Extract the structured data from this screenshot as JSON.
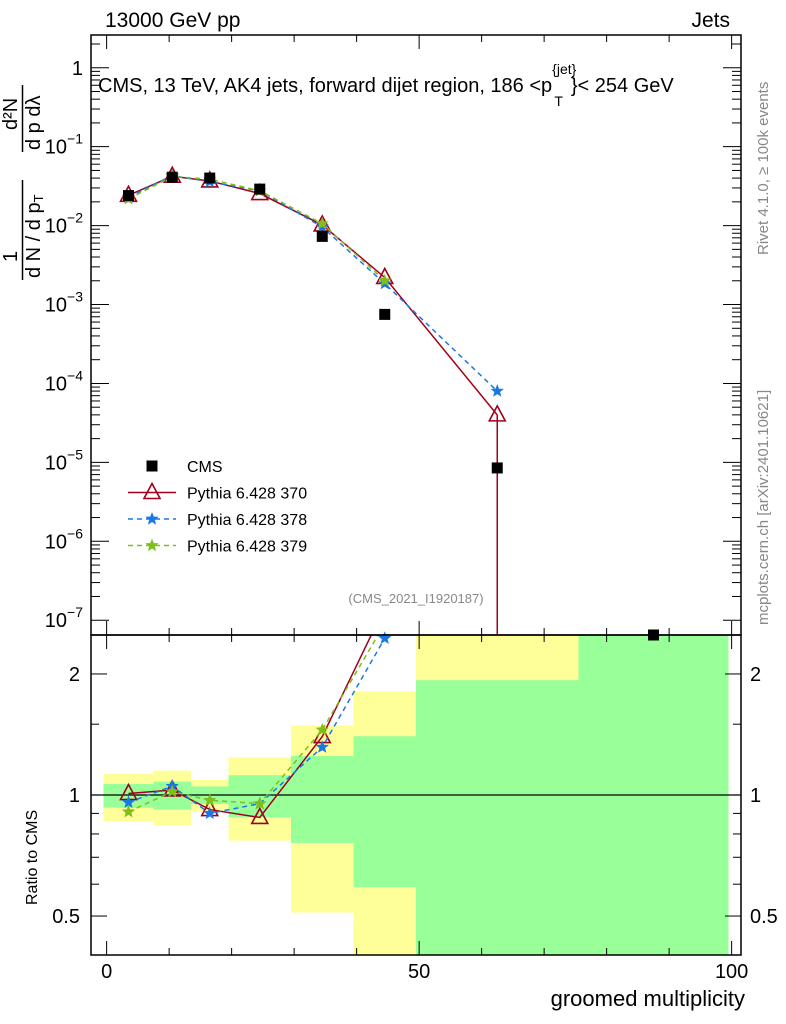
{
  "chart_data": {
    "type": "line",
    "header_left": "13000 GeV pp",
    "header_right": "Jets",
    "title": "CMS, 13 TeV, AK4 jets, forward dijet region, 186 <p",
    "title_sup": "{jet}",
    "title_sub": "T",
    "title_end": "}< 254 GeV",
    "ylabel": "1/N dN/dp_T dλ",
    "ylabel_parts": {
      "pre": "1",
      "mid": "d N / d p",
      "sub": "T",
      "num": "d²N",
      "den": "d p  dλ"
    },
    "ratio_ylabel": "Ratio to CMS",
    "xlabel": "groomed multiplicity",
    "side_label_top": "Rivet 4.1.0, ≥ 100k events",
    "side_label_bottom": "mcplots.cern.ch [arXiv:2401.10621]",
    "analysis_tag": "(CMS_2021_I1920187)",
    "xlim": [
      -2.5,
      101.5
    ],
    "ylim_log": [
      6.5e-08,
      2.6
    ],
    "ratio_ylim_log": [
      0.4,
      2.5
    ],
    "x_ticks": [
      "0",
      "50",
      "100"
    ],
    "x_tick_values": [
      0,
      50,
      100
    ],
    "y_ticks": [
      {
        "base": "1",
        "exp": ""
      },
      {
        "base": "10",
        "exp": "−1"
      },
      {
        "base": "10",
        "exp": "−2"
      },
      {
        "base": "10",
        "exp": "−3"
      },
      {
        "base": "10",
        "exp": "−4"
      },
      {
        "base": "10",
        "exp": "−5"
      },
      {
        "base": "10",
        "exp": "−6"
      },
      {
        "base": "10",
        "exp": "−7"
      }
    ],
    "y_tick_values": [
      1,
      0.1,
      0.01,
      0.001,
      0.0001,
      1e-05,
      1e-06,
      1e-07
    ],
    "ratio_ticks": [
      "0.5",
      "1",
      "2"
    ],
    "ratio_tick_values": [
      0.5,
      1,
      2
    ],
    "x": [
      3.5,
      10.5,
      16.5,
      24.5,
      34.5,
      44.5,
      62.5,
      87.5
    ],
    "bins": [
      [
        -0.5,
        7.5
      ],
      [
        7.5,
        13.5
      ],
      [
        13.5,
        19.5
      ],
      [
        19.5,
        29.5
      ],
      [
        29.5,
        39.5
      ],
      [
        39.5,
        49.5
      ],
      [
        49.5,
        75.5
      ],
      [
        75.5,
        99.5
      ]
    ],
    "band_stat": [
      [
        0.93,
        1.065
      ],
      [
        0.92,
        1.08
      ],
      [
        0.95,
        1.05
      ],
      [
        0.88,
        1.12
      ],
      [
        0.76,
        1.25
      ],
      [
        0.59,
        1.4
      ],
      [
        0.3,
        1.93
      ],
      [
        0.3,
        3
      ]
    ],
    "band_total": [
      [
        0.86,
        1.13
      ],
      [
        0.84,
        1.15
      ],
      [
        0.91,
        1.09
      ],
      [
        0.77,
        1.24
      ],
      [
        0.51,
        1.49
      ],
      [
        0.3,
        1.81
      ],
      [
        0.3,
        3
      ],
      [
        0.3,
        3
      ]
    ],
    "series": [
      {
        "name": "CMS",
        "color": "#000000",
        "marker": "square",
        "values": [
          0.024,
          0.041,
          0.04,
          0.029,
          0.0073,
          0.00075,
          8.5e-06,
          6.5e-08
        ]
      },
      {
        "name": "Pythia 6.428 370",
        "color": "#a0001c",
        "marker": "triangle",
        "dash": "",
        "values": [
          0.0242,
          0.0422,
          0.0368,
          0.0255,
          0.0102,
          0.0022,
          4e-05,
          null
        ]
      },
      {
        "name": "Pythia 6.428 378",
        "color": "#1a78e6",
        "marker": "star",
        "dash": "5,4",
        "values": [
          0.023,
          0.0431,
          0.036,
          0.0276,
          0.0096,
          0.00184,
          8e-05,
          null
        ]
      },
      {
        "name": "Pythia 6.428 379",
        "color": "#7fbf1a",
        "marker": "star",
        "dash": "5,4",
        "values": [
          0.0218,
          0.0418,
          0.0388,
          0.0276,
          0.0106,
          0.002,
          null,
          null
        ]
      }
    ]
  }
}
